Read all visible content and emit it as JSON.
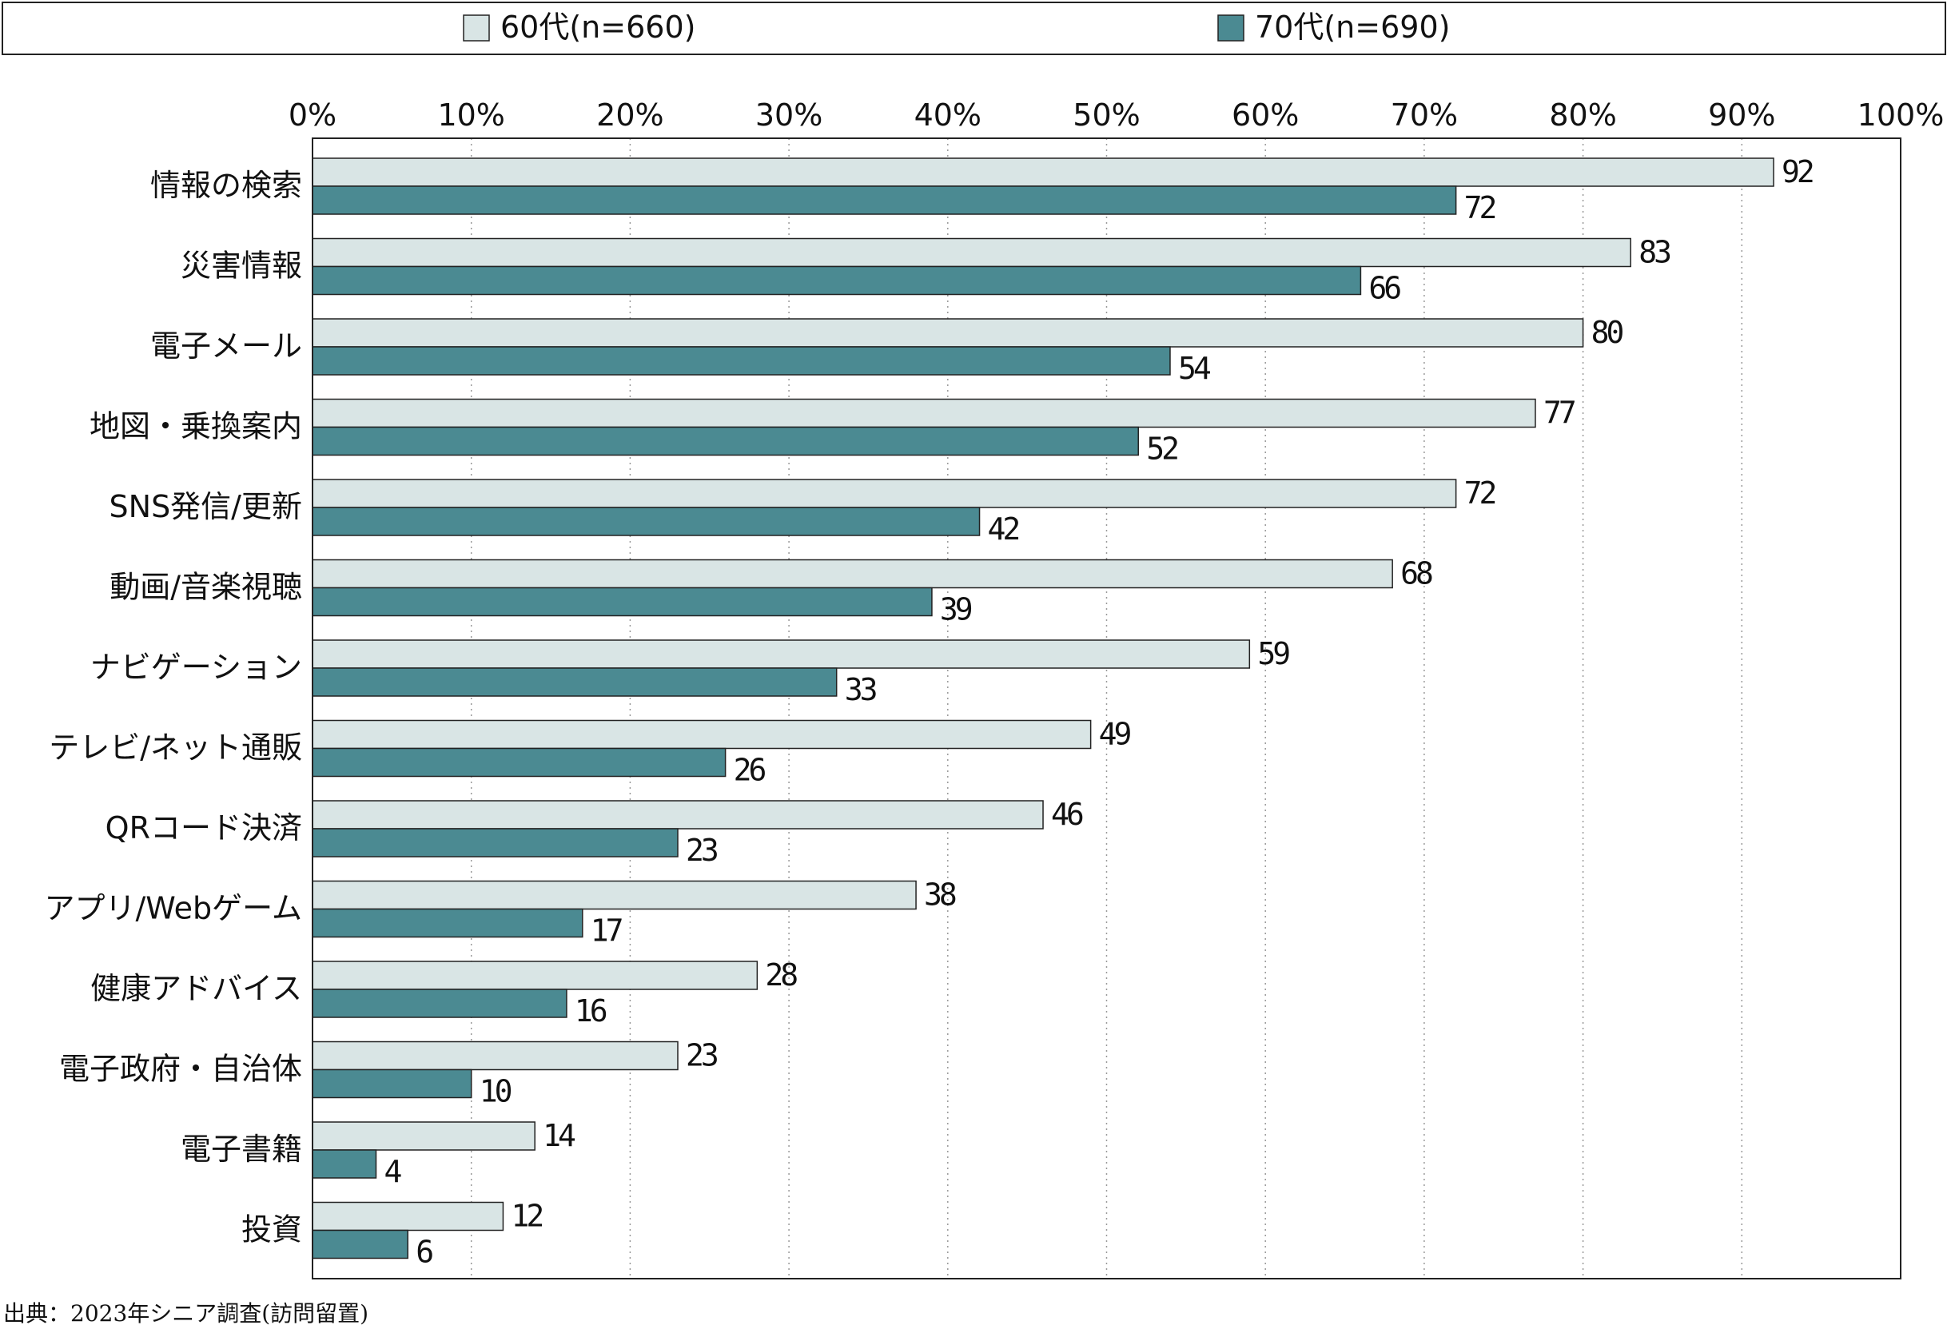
{
  "legend": {
    "items": [
      {
        "label": "60代(n=660)",
        "color": "#d9e5e5"
      },
      {
        "label": "70代(n=690)",
        "color": "#4b8a92"
      }
    ]
  },
  "source_note": "出典：2023年シニア調査(訪問留置)",
  "chart_data": {
    "type": "bar",
    "orientation": "horizontal",
    "xlim": [
      0,
      100
    ],
    "x_ticks": [
      "0%",
      "10%",
      "20%",
      "30%",
      "40%",
      "50%",
      "60%",
      "70%",
      "80%",
      "90%",
      "100%"
    ],
    "grid": "vertical dotted",
    "legend_position": "top",
    "categories": [
      "情報の検索",
      "災害情報",
      "電子メール",
      "地図・乗換案内",
      "SNS発信/更新",
      "動画/音楽視聴",
      "ナビゲーション",
      "テレビ/ネット通販",
      "QRコード決済",
      "アプリ/Webゲーム",
      "健康アドバイス",
      "電子政府・自治体",
      "電子書籍",
      "投資"
    ],
    "series": [
      {
        "name": "60代(n=660)",
        "color": "#d9e5e5",
        "values": [
          92,
          83,
          80,
          77,
          72,
          68,
          59,
          49,
          46,
          38,
          28,
          23,
          14,
          12
        ]
      },
      {
        "name": "70代(n=690)",
        "color": "#4b8a92",
        "values": [
          72,
          66,
          54,
          52,
          42,
          39,
          33,
          26,
          23,
          17,
          16,
          10,
          4,
          6
        ]
      }
    ]
  }
}
